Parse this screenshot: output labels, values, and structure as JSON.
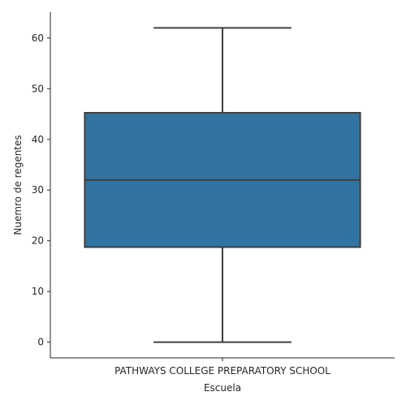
{
  "chart_data": {
    "type": "box",
    "title": "",
    "xlabel": "Escuela",
    "ylabel": "Nuemro de regentes",
    "categories": [
      "PATHWAYS COLLEGE PREPARATORY SCHOOL"
    ],
    "boxes": [
      {
        "category": "PATHWAYS COLLEGE PREPARATORY SCHOOL",
        "min": 0,
        "q1": 18.75,
        "median": 32,
        "q3": 45.25,
        "max": 62
      }
    ],
    "yticks": [
      0,
      10,
      20,
      30,
      40,
      50,
      60
    ],
    "ylim": [
      -3.1,
      65.1
    ],
    "grid": false,
    "legend": "none",
    "colors": {
      "box_fill": "#3274a1",
      "line": "#3f3f3f",
      "axis": "#262626"
    }
  }
}
